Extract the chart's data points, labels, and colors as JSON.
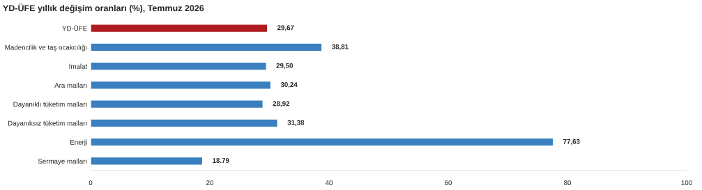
{
  "chart_data": {
    "type": "bar",
    "orientation": "horizontal",
    "title": "YD-ÜFE yıllık değişim oranları (%), Temmuz 2026",
    "categories": [
      "YD-ÜFE",
      "Madencilik ve taş ocakcılığı",
      "İmalat",
      "Ara malları",
      "Dayanıklı tüketim malları",
      "Dayanıksız tüketim malları",
      "Enerji",
      "Sermaye malları"
    ],
    "values": [
      29.67,
      38.81,
      29.5,
      30.24,
      28.92,
      31.38,
      77.63,
      18.79
    ],
    "colors": [
      "#b01c22",
      "#3a7fbf",
      "#3a7fbf",
      "#3a7fbf",
      "#3a7fbf",
      "#3a7fbf",
      "#3a7fbf",
      "#3a7fbf"
    ],
    "value_labels": [
      "29,67",
      "38,81",
      "29,50",
      "30,24",
      "28,92",
      "31,38",
      "77,63",
      "18.79"
    ],
    "xlim": [
      0,
      100
    ],
    "xticks": [
      0,
      20,
      40,
      60,
      80,
      100
    ],
    "grid": false,
    "legend": false
  }
}
